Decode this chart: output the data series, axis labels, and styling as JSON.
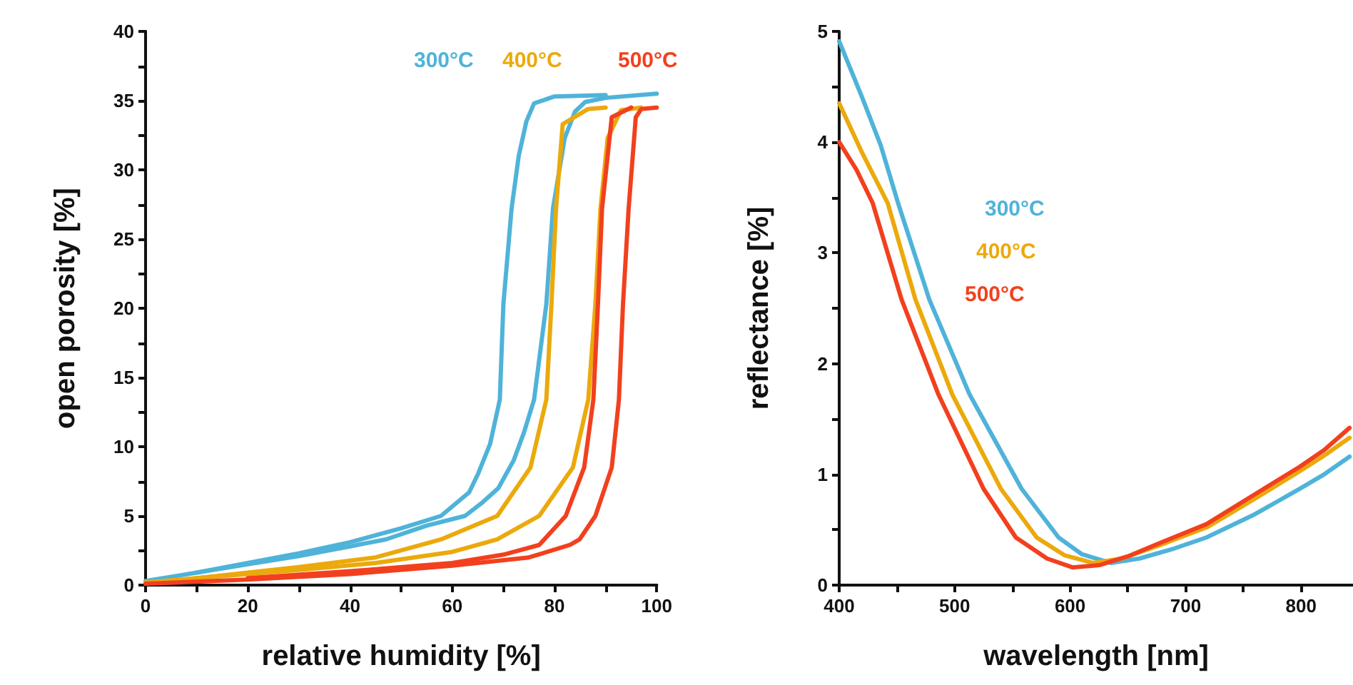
{
  "chart_data": [
    {
      "type": "line",
      "xlabel": "relative humidity [%]",
      "ylabel": "open porosity [%]",
      "xlim": [
        0,
        100
      ],
      "ylim": [
        0,
        40
      ],
      "marker": "none",
      "xticks": [
        0,
        {
          "value": 10,
          "label": null
        },
        20,
        {
          "value": 30,
          "label": null
        },
        40,
        {
          "value": 50,
          "label": null
        },
        60,
        {
          "value": 70,
          "label": null
        },
        80,
        {
          "value": 90,
          "label": null
        },
        100
      ],
      "yticks": [
        0,
        {
          "value": 2.5,
          "label": null
        },
        5,
        {
          "value": 7.5,
          "label": null
        },
        10,
        {
          "value": 12.5,
          "label": null
        },
        15,
        {
          "value": 17.5,
          "label": null
        },
        20,
        {
          "value": 22.5,
          "label": null
        },
        25,
        {
          "value": 27.5,
          "label": null
        },
        30,
        {
          "value": 32.5,
          "label": null
        },
        35,
        {
          "value": 37.5,
          "label": null
        },
        40
      ],
      "series": [
        {
          "name": "300°C",
          "color": "#4fb3d9",
          "x": [
            0,
            10,
            20,
            30,
            40,
            47,
            55,
            62.5,
            66,
            69,
            72,
            74,
            76,
            78.4,
            79.7,
            82,
            84,
            86,
            90,
            100
          ],
          "values": [
            0.3,
            0.9,
            1.5,
            2.1,
            2.8,
            3.3,
            4.3,
            5.0,
            6.0,
            7.0,
            9.0,
            11.0,
            13.4,
            20.3,
            27.2,
            32.3,
            34.2,
            34.9,
            35.2,
            35.5
          ]
        },
        {
          "color": "#4fb3d9",
          "x": [
            10,
            20,
            30,
            40,
            50,
            57.8,
            63.3,
            65,
            67.4,
            69.3,
            70,
            71.6,
            73,
            74.5,
            76,
            80,
            90
          ],
          "values": [
            0.9,
            1.6,
            2.3,
            3.1,
            4.1,
            5.0,
            6.7,
            8.0,
            10.2,
            13.4,
            20.3,
            27.2,
            31.0,
            33.5,
            34.8,
            35.3,
            35.4
          ]
        },
        {
          "name": "400°C",
          "color": "#eba90c",
          "x": [
            0,
            10,
            20,
            30,
            45,
            60,
            68.8,
            77,
            83.6,
            86.6,
            88,
            89,
            90.4,
            93,
            97
          ],
          "values": [
            0.2,
            0.5,
            0.8,
            1.1,
            1.6,
            2.4,
            3.3,
            5.0,
            8.5,
            13.4,
            20.3,
            27.2,
            32.3,
            34.3,
            34.5
          ]
        },
        {
          "color": "#eba90c",
          "x": [
            10,
            20,
            30,
            45,
            57.8,
            68.8,
            75.3,
            78.4,
            79.4,
            80.3,
            81.6,
            86.6,
            90
          ],
          "values": [
            0.5,
            0.9,
            1.3,
            2.0,
            3.3,
            5.0,
            8.5,
            13.4,
            20.3,
            27.2,
            33.3,
            34.4,
            34.5
          ]
        },
        {
          "name": "500°C",
          "color": "#f2401e",
          "x": [
            0,
            20,
            40,
            60,
            75,
            83,
            84.9,
            88,
            91.2,
            92.6,
            93.4,
            94.5,
            95.9,
            97,
            100
          ],
          "values": [
            0.1,
            0.4,
            0.8,
            1.4,
            2.0,
            2.9,
            3.3,
            5.0,
            8.5,
            13.4,
            20.3,
            27.2,
            33.8,
            34.4,
            34.5
          ]
        },
        {
          "color": "#f2401e",
          "x": [
            20,
            40,
            60,
            70,
            77,
            82.2,
            85.8,
            87.6,
            88.5,
            89.3,
            91.2,
            95
          ],
          "values": [
            0.5,
            1.0,
            1.6,
            2.2,
            2.9,
            5.0,
            8.5,
            13.4,
            20.3,
            27.2,
            33.8,
            34.5
          ]
        }
      ]
    },
    {
      "type": "line",
      "xlabel": "wavelength [nm]",
      "ylabel": "reflectance [%]",
      "xlim": [
        400,
        845
      ],
      "ylim": [
        0,
        5
      ],
      "marker": "none",
      "xticks": [
        400,
        {
          "value": 450,
          "label": null
        },
        500,
        {
          "value": 550,
          "label": null
        },
        600,
        {
          "value": 650,
          "label": null
        },
        700,
        {
          "value": 750,
          "label": null
        },
        800
      ],
      "yticks": [
        0,
        {
          "value": 0.5,
          "label": null
        },
        1,
        {
          "value": 1.5,
          "label": null
        },
        2,
        {
          "value": 2.5,
          "label": null
        },
        3,
        {
          "value": 3.5,
          "label": null
        },
        4,
        {
          "value": 4.5,
          "label": null
        },
        5
      ],
      "series": [
        {
          "name": "300°C",
          "color": "#4fb3d9",
          "x": [
            400,
            420,
            436,
            451,
            478,
            513,
            558,
            590,
            610,
            635,
            660,
            690,
            718,
            760,
            799,
            820,
            842
          ],
          "values": [
            4.91,
            4.4,
            3.97,
            3.45,
            2.58,
            1.72,
            0.87,
            0.43,
            0.28,
            0.2,
            0.24,
            0.33,
            0.43,
            0.64,
            0.87,
            1.0,
            1.16
          ]
        },
        {
          "name": "400°C",
          "color": "#eba90c",
          "x": [
            400,
            420,
            442,
            466,
            498,
            540,
            571,
            595,
            620,
            645,
            680,
            718,
            760,
            799,
            820,
            842
          ],
          "values": [
            4.35,
            3.9,
            3.45,
            2.58,
            1.72,
            0.87,
            0.43,
            0.27,
            0.2,
            0.24,
            0.37,
            0.52,
            0.78,
            1.03,
            1.17,
            1.33
          ]
        },
        {
          "name": "500°C",
          "color": "#f2401e",
          "x": [
            400,
            415,
            429,
            454,
            486,
            525,
            553,
            580,
            602,
            625,
            650,
            680,
            718,
            760,
            799,
            820,
            842
          ],
          "values": [
            4.0,
            3.75,
            3.45,
            2.58,
            1.72,
            0.87,
            0.43,
            0.24,
            0.16,
            0.18,
            0.26,
            0.39,
            0.55,
            0.82,
            1.07,
            1.22,
            1.42
          ]
        }
      ]
    }
  ]
}
